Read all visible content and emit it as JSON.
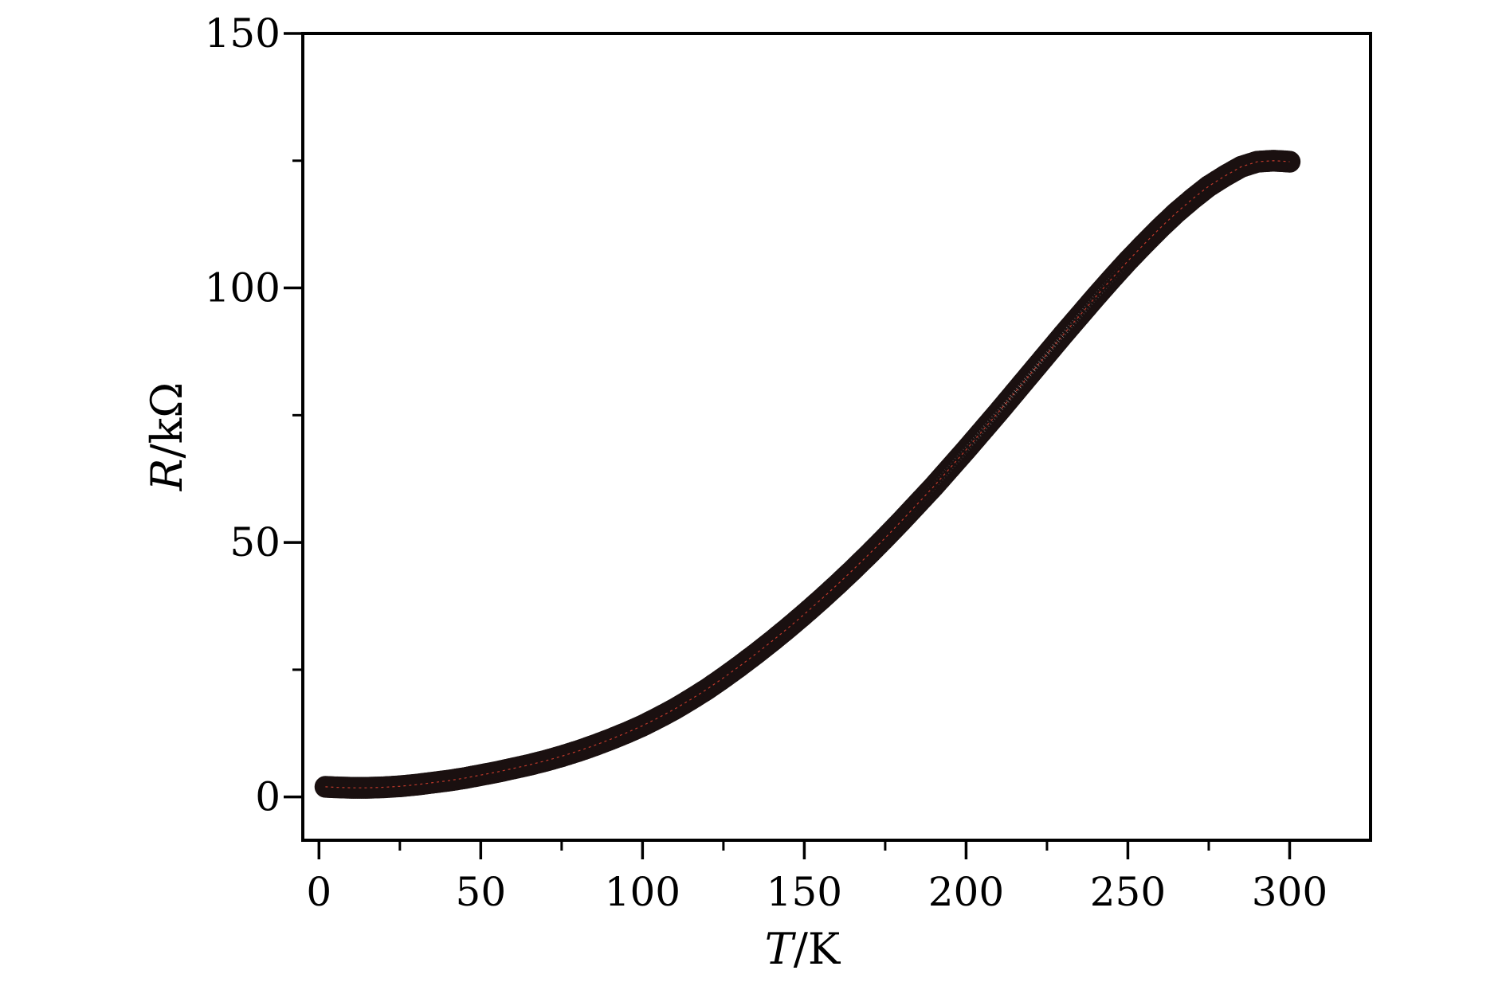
{
  "chart_data": {
    "type": "scatter",
    "title": "",
    "xlabel": {
      "var": "T",
      "unit": "/K"
    },
    "ylabel": {
      "var": "R",
      "unit": "/kΩ"
    },
    "xlim": [
      -5,
      325
    ],
    "ylim": [
      -8.5,
      150
    ],
    "xticks": [
      0,
      50,
      100,
      150,
      200,
      250,
      300
    ],
    "xminor_ticks": [
      25,
      75,
      125,
      175,
      225,
      275
    ],
    "yticks": [
      0,
      50,
      100,
      150
    ],
    "yminor_ticks": [
      25,
      75,
      125
    ],
    "grid": false,
    "legend": "none",
    "marker": "open-circle",
    "colors": {
      "marker": "#1a1010",
      "fit": "#c0392b",
      "axis": "#000000"
    },
    "series": [
      {
        "x": [
          2,
          5,
          10,
          15,
          20,
          25,
          30,
          35,
          40,
          45,
          50,
          55,
          60,
          65,
          70,
          75,
          80,
          85,
          90,
          95,
          100,
          105,
          110,
          115,
          120,
          125,
          130,
          135,
          140,
          145,
          150,
          155,
          160,
          165,
          170,
          175,
          180,
          185,
          190,
          195,
          200,
          205,
          210,
          215,
          220,
          225,
          230,
          235,
          240,
          245,
          250,
          255,
          260,
          265,
          270,
          275,
          280,
          285,
          290,
          295,
          298,
          300
        ],
        "y": [
          2,
          1.9,
          1.8,
          1.8,
          1.9,
          2.1,
          2.4,
          2.8,
          3.2,
          3.7,
          4.3,
          4.9,
          5.6,
          6.3,
          7.1,
          8.0,
          9.0,
          10.1,
          11.3,
          12.6,
          14.0,
          15.6,
          17.3,
          19.2,
          21.2,
          23.4,
          25.7,
          28.1,
          30.6,
          33.2,
          35.9,
          38.7,
          41.6,
          44.6,
          47.7,
          50.9,
          54.2,
          57.6,
          61.0,
          64.6,
          68.2,
          71.9,
          75.6,
          79.4,
          83.2,
          87.0,
          90.8,
          94.5,
          98.2,
          101.8,
          105.3,
          108.6,
          111.8,
          114.8,
          117.5,
          120.0,
          122.0,
          123.8,
          124.8,
          125.0,
          124.9,
          124.8
        ]
      }
    ]
  }
}
